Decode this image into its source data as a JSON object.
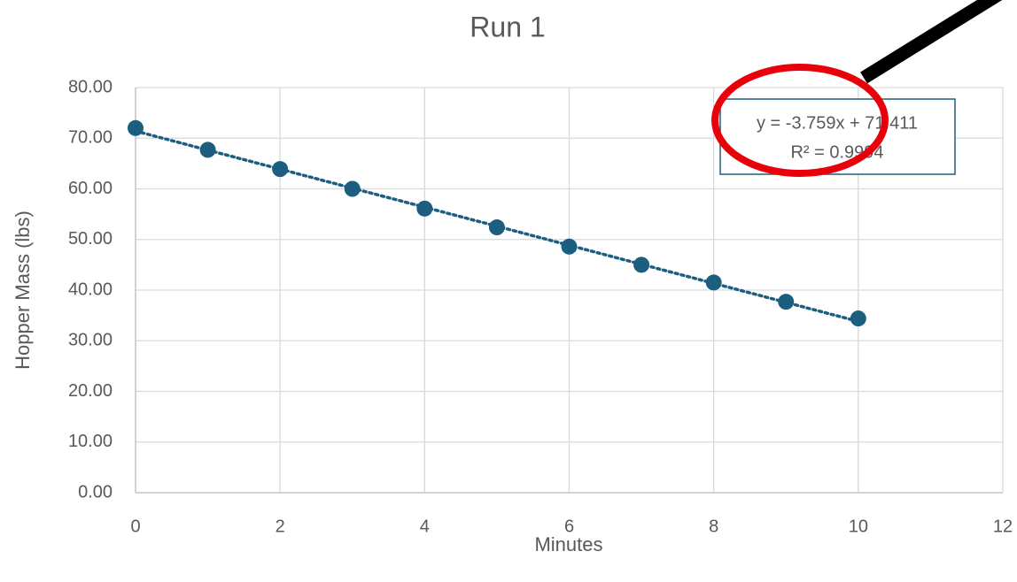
{
  "chart_data": {
    "type": "scatter",
    "title": "Run 1",
    "x_label": "Minutes",
    "y_label": "Hopper Mass (lbs)",
    "series": [
      {
        "name": "Run 1",
        "color": "#1b5e80",
        "x": [
          0,
          1,
          2,
          3,
          4,
          5,
          6,
          7,
          8,
          9,
          10
        ],
        "values": [
          72.0,
          67.7,
          63.9,
          60.0,
          56.1,
          52.4,
          48.6,
          45.0,
          41.5,
          37.7,
          34.4
        ]
      }
    ],
    "trendline": {
      "slope": -3.759,
      "intercept": 71.411,
      "color": "#1b5e80"
    },
    "annotation": [
      "y = -3.759x + 71.411",
      "R² = 0.9994"
    ],
    "xlim": [
      0,
      12
    ],
    "xticks": [
      0,
      2,
      4,
      6,
      8,
      10,
      12
    ],
    "ylim": [
      0,
      80
    ],
    "yticks": [
      {
        "value": 0,
        "label": "0.00"
      },
      {
        "value": 10,
        "label": "10.00"
      },
      {
        "value": 20,
        "label": "20.00"
      },
      {
        "value": 30,
        "label": "30.00"
      },
      {
        "value": 40,
        "label": "40.00"
      },
      {
        "value": 50,
        "label": "50.00"
      },
      {
        "value": 60,
        "label": "60.00"
      },
      {
        "value": 70,
        "label": "70.00"
      },
      {
        "value": 80,
        "label": "80.00"
      }
    ],
    "grid": true
  }
}
